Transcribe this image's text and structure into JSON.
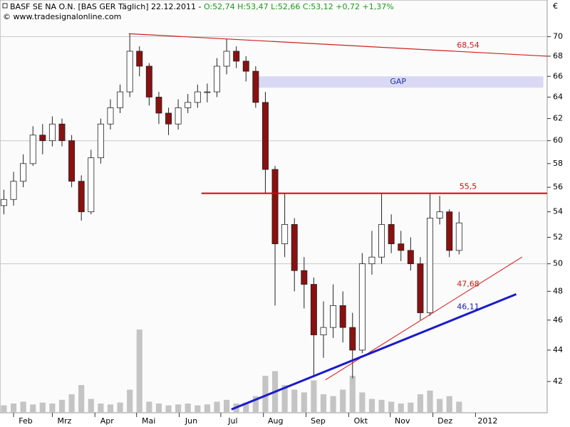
{
  "chart_data": {
    "type": "candlestick",
    "title": "BASF SE NA O.N. [BAS GER  Täglich] 22.12.2011 - ",
    "quote": "O:52,74 H:53,47 L:52,66 C:53,12 +0,72 +1,37%",
    "source": "© www.tradesignalonline.com",
    "y_unit": "€",
    "log_scale": true,
    "up_color": "#ffffff",
    "down_color": "#8b1010",
    "volume_color": "#c4c4c4",
    "categories": [
      null,
      null,
      null,
      null,
      null,
      null,
      null,
      null,
      null,
      null,
      null,
      null,
      null,
      null,
      null,
      null,
      null,
      null,
      null,
      null,
      null,
      null,
      null,
      null,
      null,
      null,
      null,
      null,
      null,
      null,
      null,
      null,
      null,
      null,
      null,
      null,
      null,
      null,
      null,
      null,
      null,
      null,
      null,
      null,
      null,
      null,
      null,
      null
    ],
    "open": [
      54.5,
      55.0,
      56.5,
      58.0,
      60.5,
      60.0,
      61.5,
      60.0,
      56.5,
      54.0,
      58.5,
      61.5,
      63.0,
      64.5,
      68.5,
      67.0,
      64.0,
      62.5,
      61.5,
      63.0,
      63.5,
      64.5,
      64.5,
      67.0,
      68.5,
      67.5,
      66.5,
      63.5,
      57.5,
      51.5,
      53.0,
      49.5,
      48.5,
      45.0,
      45.5,
      47.0,
      45.5,
      44.0,
      50.0,
      50.5,
      53.0,
      51.5,
      51.0,
      50.0,
      46.5,
      53.5,
      54.0,
      51.0
    ],
    "high": [
      55.8,
      57.3,
      58.8,
      61.3,
      61.5,
      62.2,
      62.0,
      60.5,
      57.0,
      59.2,
      62.0,
      63.8,
      65.2,
      70.3,
      69.0,
      67.3,
      64.5,
      63.0,
      63.8,
      64.3,
      65.2,
      65.3,
      67.8,
      69.8,
      69.0,
      68.0,
      67.0,
      64.5,
      57.8,
      55.5,
      53.5,
      50.5,
      49.0,
      47.3,
      48.5,
      48.0,
      46.5,
      50.8,
      52.5,
      55.5,
      53.8,
      52.5,
      52.0,
      50.5,
      55.5,
      55.3,
      54.2,
      54.0
    ],
    "low": [
      53.8,
      54.5,
      56.0,
      57.8,
      58.8,
      59.5,
      59.5,
      56.0,
      53.3,
      53.8,
      58.0,
      61.0,
      62.5,
      64.0,
      66.0,
      63.2,
      61.5,
      60.5,
      61.0,
      62.5,
      63.0,
      63.5,
      64.0,
      66.2,
      66.8,
      65.5,
      63.0,
      55.5,
      47.0,
      50.5,
      48.0,
      46.8,
      42.4,
      43.5,
      44.8,
      44.5,
      42.2,
      43.8,
      49.2,
      50.0,
      50.8,
      50.2,
      49.5,
      46.0,
      46.3,
      53.0,
      50.5,
      50.7
    ],
    "close": [
      55.0,
      56.5,
      58.0,
      60.5,
      60.0,
      61.5,
      60.0,
      56.5,
      54.0,
      58.5,
      61.5,
      63.0,
      64.5,
      68.5,
      67.0,
      64.0,
      62.5,
      61.5,
      63.0,
      63.5,
      64.5,
      64.5,
      67.0,
      68.5,
      67.5,
      66.5,
      63.5,
      57.5,
      51.5,
      53.0,
      49.5,
      48.5,
      45.0,
      45.5,
      47.0,
      45.5,
      44.0,
      50.0,
      50.5,
      53.0,
      51.5,
      51.0,
      50.0,
      46.5,
      53.5,
      54.0,
      51.0,
      53.12
    ],
    "volume": [
      8,
      10,
      12,
      9,
      11,
      10,
      14,
      20,
      30,
      15,
      10,
      9,
      11,
      25,
      90,
      12,
      10,
      8,
      9,
      10,
      8,
      9,
      12,
      14,
      10,
      11,
      18,
      40,
      45,
      30,
      25,
      22,
      35,
      20,
      18,
      25,
      40,
      22,
      15,
      14,
      12,
      10,
      11,
      20,
      24,
      15,
      18,
      12
    ],
    "volume_lim": [
      0,
      100
    ],
    "xlim": [
      -0.4,
      56.1
    ],
    "xticks": [
      {
        "value": 1.0,
        "label": "Feb"
      },
      {
        "value": 5.0,
        "label": "Mrz"
      },
      {
        "value": 9.4,
        "label": "Apr"
      },
      {
        "value": 13.7,
        "label": "Mai"
      },
      {
        "value": 18.1,
        "label": "Jun"
      },
      {
        "value": 22.4,
        "label": "Jul"
      },
      {
        "value": 26.8,
        "label": "Aug"
      },
      {
        "value": 31.2,
        "label": "Sep"
      },
      {
        "value": 35.6,
        "label": "Okt"
      },
      {
        "value": 39.9,
        "label": "Nov"
      },
      {
        "value": 44.3,
        "label": "Dez"
      },
      {
        "value": 48.7,
        "label": "2012"
      }
    ],
    "ylim": [
      40.1,
      73.9
    ],
    "yticks": [
      42,
      44,
      46,
      48,
      50,
      52,
      54,
      56,
      58,
      60,
      62,
      64,
      66,
      68,
      70
    ],
    "lines": [
      {
        "label": "68,54",
        "color": "#cc2222",
        "x": [
          12.9,
          56.1
        ],
        "y": [
          70.3,
          68.0
        ]
      },
      {
        "label": "55,5",
        "color": "#e00000",
        "x": [
          20.4,
          56.1
        ],
        "y": [
          55.5,
          55.5
        ]
      },
      {
        "label": "47,68",
        "color": "#dd1111",
        "x": [
          33.2,
          53.5
        ],
        "y": [
          42.1,
          50.5
        ]
      },
      {
        "label": "46,11",
        "color": "#1a1acc",
        "x": [
          23.5,
          52.9
        ],
        "y": [
          40.3,
          47.8
        ]
      }
    ],
    "gap": {
      "label": "GAP",
      "color": "#d9d9f5",
      "x": [
        25.7,
        55.7
      ],
      "y": [
        64.9,
        66.0
      ]
    }
  }
}
